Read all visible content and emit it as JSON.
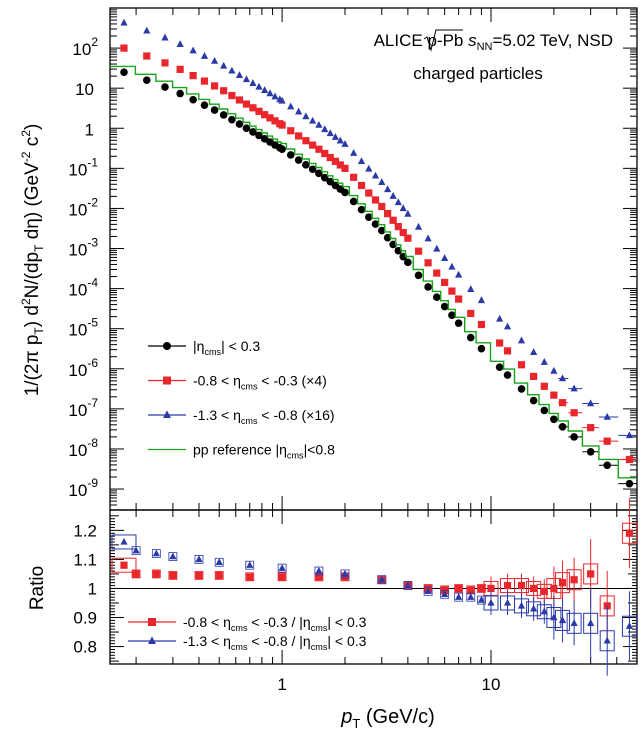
{
  "colors": {
    "black": "#000000",
    "red": "#e8262c",
    "blue": "#2b3aa8",
    "green": "#1aa31a",
    "frame": "#000000",
    "unity_line": "#000000"
  },
  "text": {
    "title_line1_pre": "ALICE  p-Pb ",
    "title_sqrt_s": "s",
    "title_sqrt_sub": "NN",
    "title_line1_post": "=5.02 TeV, NSD",
    "title_line2": "charged particles",
    "ylabel_main_parts": [
      "1/(2π p",
      "T",
      ") d",
      "2",
      "N/(dp",
      "T",
      " dη) (GeV",
      "-2",
      " c",
      "2",
      ")"
    ],
    "ylabel_ratio": "Ratio",
    "xlabel_pre": "p",
    "xlabel_sub": "T",
    "xlabel_post": " (GeV/c)"
  },
  "legend_main": [
    {
      "series": "eta03",
      "pre": "|η",
      "sub": "cms",
      "post": "| < 0.3"
    },
    {
      "series": "eta08_03",
      "pre": "-0.8 < η",
      "sub": "cms",
      "post": " < -0.3 (×4)"
    },
    {
      "series": "eta13_08",
      "pre": "-1.3 < η",
      "sub": "cms",
      "post": " < -0.8 (×16)"
    },
    {
      "series": "pp_ref",
      "pre": "pp reference |η",
      "sub": "cms",
      "post": "|<0.8"
    }
  ],
  "legend_ratio": [
    {
      "series": "ratio_08_03",
      "pre": "-0.8 < η",
      "sub": "cms",
      "mid": " < -0.3 / |η",
      "sub2": "cms",
      "post": "| < 0.3"
    },
    {
      "series": "ratio_13_08",
      "pre": "-1.3 < η",
      "sub": "cms",
      "mid": " < -0.8 / |η",
      "sub2": "cms",
      "post": "| < 0.3"
    }
  ],
  "chart_data": [
    {
      "type": "scatter",
      "panel": "main",
      "x_scale": "log",
      "y_scale": "log",
      "xlim": [
        0.15,
        50
      ],
      "ylim": [
        3e-10,
        1000
      ],
      "x_ticks": [
        {
          "value": 1,
          "label": "1"
        },
        {
          "value": 10,
          "label": "10"
        }
      ],
      "y_ticks": [
        {
          "value": 100,
          "base": "10",
          "exp": "2"
        },
        {
          "value": 10,
          "base": "10",
          "exp": ""
        },
        {
          "value": 1,
          "base": "1",
          "exp": ""
        },
        {
          "value": 0.1,
          "base": "10",
          "exp": "-1"
        },
        {
          "value": 0.01,
          "base": "10",
          "exp": "-2"
        },
        {
          "value": 0.001,
          "base": "10",
          "exp": "-3"
        },
        {
          "value": 0.0001,
          "base": "10",
          "exp": "-4"
        },
        {
          "value": 1e-05,
          "base": "10",
          "exp": "-5"
        },
        {
          "value": 1e-06,
          "base": "10",
          "exp": "-6"
        },
        {
          "value": 1e-07,
          "base": "10",
          "exp": "-7"
        },
        {
          "value": 1e-08,
          "base": "10",
          "exp": "-8"
        },
        {
          "value": 1e-09,
          "base": "10",
          "exp": "-9"
        }
      ],
      "spectrum_model": {
        "x": [
          0.175,
          0.2,
          0.3,
          0.5,
          0.8,
          1.0,
          1.5,
          2.0,
          3.0,
          5.0,
          8.0,
          10.0,
          15.0,
          20.0,
          25.0,
          30.0,
          40.0,
          50.0
        ],
        "y": [
          25,
          20,
          9,
          2.5,
          0.6,
          0.3,
          0.075,
          0.025,
          0.0028,
          0.00011,
          6e-06,
          1.8e-06,
          2.2e-07,
          5.5e-08,
          2e-08,
          8.5e-09,
          2.5e-09,
          9.5e-10
        ]
      },
      "series": [
        {
          "name": "|η_cms| < 0.3",
          "key": "eta03",
          "color": "black",
          "marker": "circle",
          "scale": 1
        },
        {
          "name": "-0.8 < η_cms < -0.3 (×4)",
          "key": "eta08_03",
          "color": "red",
          "marker": "square",
          "scale": 4
        },
        {
          "name": "-1.3 < η_cms < -0.8 (×16)",
          "key": "eta13_08",
          "color": "blue",
          "marker": "triangle",
          "scale": 16
        },
        {
          "name": "pp reference |η_cms|<0.8",
          "key": "pp_ref",
          "color": "green",
          "marker": "step-line",
          "scale": 1.4
        }
      ]
    },
    {
      "type": "scatter",
      "panel": "ratio",
      "x_scale": "log",
      "y_scale": "linear",
      "xlim": [
        0.15,
        50
      ],
      "ylim": [
        0.74,
        1.27
      ],
      "y_ticks": [
        {
          "value": 1.2,
          "label": "1.2"
        },
        {
          "value": 1.1,
          "label": "1.1"
        },
        {
          "value": 1.0,
          "label": "1"
        },
        {
          "value": 0.9,
          "label": "0.9"
        },
        {
          "value": 0.8,
          "label": "0.8"
        }
      ],
      "reference_line": 1.0,
      "series": [
        {
          "name": "-0.8 < η_cms < -0.3 / |η_cms| < 0.3",
          "key": "ratio_08_03",
          "color": "red",
          "marker": "square",
          "x": [
            0.175,
            0.2,
            0.25,
            0.3,
            0.4,
            0.5,
            0.7,
            1.0,
            1.5,
            2.0,
            3.0,
            4.0,
            5.0,
            6.0,
            7.0,
            8.0,
            9.0,
            10.0,
            12.0,
            14.0,
            16.0,
            18.0,
            20.0,
            22.0,
            25.0,
            30.0,
            36.0,
            46.0
          ],
          "y": [
            1.08,
            1.05,
            1.05,
            1.045,
            1.045,
            1.045,
            1.04,
            1.04,
            1.04,
            1.04,
            1.03,
            1.01,
            1.0,
            0.995,
            1.0,
            0.995,
            1.0,
            1.0,
            1.01,
            1.01,
            1.0,
            0.99,
            1.0,
            1.02,
            1.03,
            1.05,
            0.94,
            1.19
          ]
        },
        {
          "name": "-1.3 < η_cms < -0.8 / |η_cms| < 0.3",
          "key": "ratio_13_08",
          "color": "blue",
          "marker": "triangle",
          "x": [
            0.175,
            0.2,
            0.25,
            0.3,
            0.4,
            0.5,
            0.7,
            1.0,
            1.5,
            2.0,
            3.0,
            4.0,
            5.0,
            6.0,
            7.0,
            8.0,
            9.0,
            10.0,
            12.0,
            14.0,
            16.0,
            18.0,
            20.0,
            22.0,
            25.0,
            30.0,
            36.0,
            46.0
          ],
          "y": [
            1.16,
            1.13,
            1.12,
            1.11,
            1.1,
            1.09,
            1.08,
            1.07,
            1.06,
            1.05,
            1.03,
            1.01,
            0.99,
            0.98,
            0.97,
            0.97,
            0.96,
            0.95,
            0.95,
            0.94,
            0.93,
            0.92,
            0.9,
            0.89,
            0.88,
            0.88,
            0.82,
            0.87
          ]
        }
      ]
    }
  ]
}
